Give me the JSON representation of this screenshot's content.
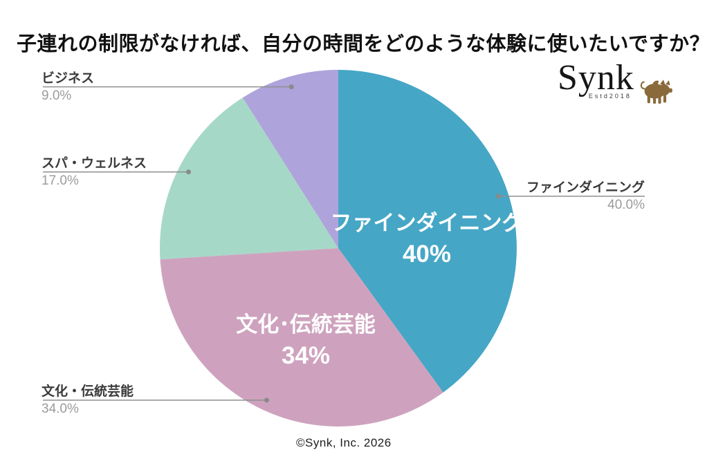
{
  "title": "子連れの制限がなければ、自分の時間をどのような体験に使いたいですか？",
  "logo": {
    "wordmark": "Synk",
    "estd": "Estd2018",
    "mascot": "pig",
    "mascot_color": "#8a6a3b"
  },
  "footer": "©Synk, Inc. 2026",
  "colors": {
    "background": "#ffffff",
    "callout_name_text": "#3a3a3a",
    "callout_pct_text": "#9b9b9b",
    "leader_line": "#8f8f8f",
    "leader_dot": "#8a8a8a",
    "inside_label_text": "#ffffff"
  },
  "chart_data": {
    "type": "pie",
    "title": "子連れの制限がなければ、自分の時間をどのような体験に使いたいですか？",
    "categories": [
      "ファインダイニング",
      "文化・伝統芸能",
      "スパ・ウェルネス",
      "ビジネス"
    ],
    "values": [
      40.0,
      34.0,
      17.0,
      9.0
    ],
    "start_angle_deg": -90,
    "direction": "clockwise",
    "legend": "none",
    "grid": false,
    "slices": [
      {
        "label": "ファインダイニング",
        "value": 40.0,
        "pct_label": "40.0%",
        "color": "#46a6c5",
        "callout_side": "right",
        "inside_label": "ファインダイニング",
        "inside_pct": "40%"
      },
      {
        "label": "文化・伝統芸能",
        "value": 34.0,
        "pct_label": "34.0%",
        "color": "#cea2be",
        "callout_side": "left",
        "inside_label": "文化･伝統芸能",
        "inside_pct": "34%"
      },
      {
        "label": "スパ・ウェルネス",
        "value": 17.0,
        "pct_label": "17.0%",
        "color": "#a6d8c8",
        "callout_side": "left"
      },
      {
        "label": "ビジネス",
        "value": 9.0,
        "pct_label": "9.0%",
        "color": "#afa3db",
        "callout_side": "left"
      }
    ]
  }
}
